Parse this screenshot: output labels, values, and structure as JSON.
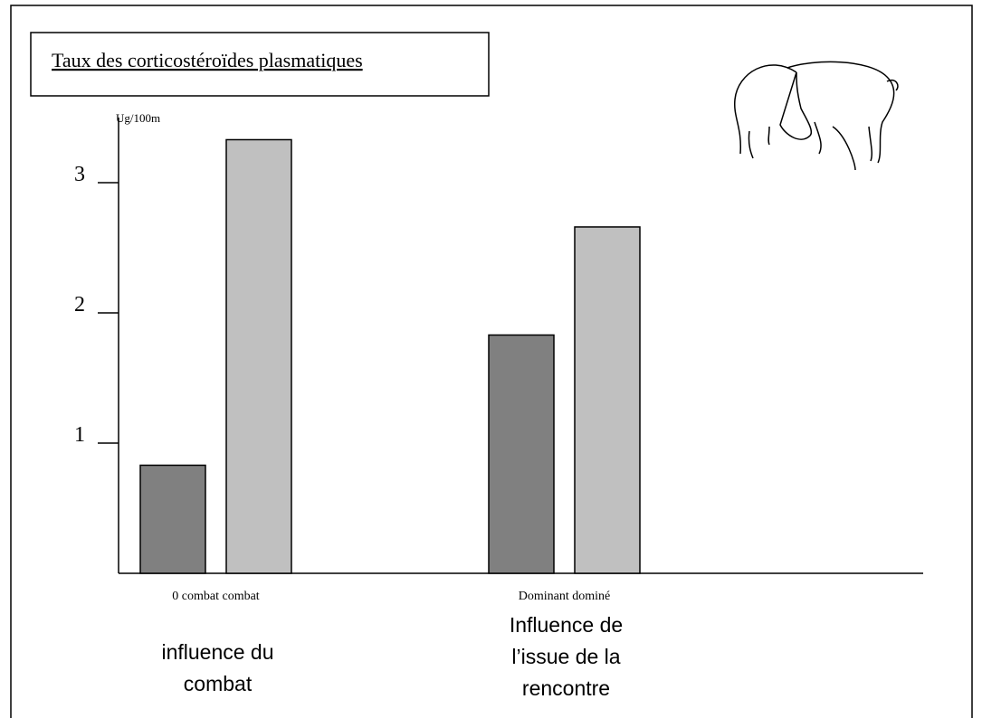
{
  "chart_data": {
    "type": "bar",
    "title": "Taux des corticostéroïdes plasmatiques",
    "y_label": "Ug/100m",
    "groups": [
      {
        "label": "0 combat combat",
        "caption": [
          "influence du",
          "combat"
        ],
        "values": [
          0.83,
          3.33
        ]
      },
      {
        "label": "Dominant  dominé",
        "caption": [
          "Influence de",
          "l’issue de la",
          "rencontre"
        ],
        "values": [
          1.83,
          2.66
        ]
      }
    ],
    "colors": [
      "#808080",
      "#c0c0c0"
    ],
    "ylim": [
      0,
      3.5
    ],
    "yticks": [
      1,
      2,
      3
    ]
  }
}
